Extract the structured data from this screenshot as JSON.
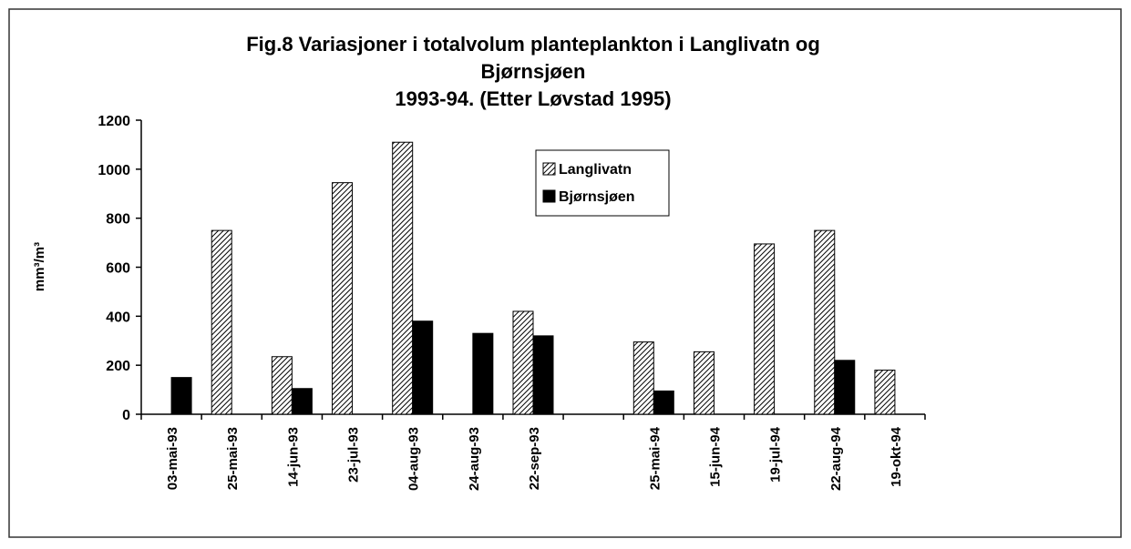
{
  "chart_data": {
    "type": "bar",
    "title": [
      "Fig.8  Variasjoner i totalvolum planteplankton i Langlivatn og",
      "Bjørnsjøen"
    ],
    "subtitle": "1993-94. (Etter Løvstad 1995)",
    "y_label": "mm³/m³",
    "categories": [
      "03-mai-93",
      "25-mai-93",
      "14-jun-93",
      "23-jul-93",
      "04-aug-93",
      "24-aug-93",
      "22-sep-93",
      null,
      "25-mai-94",
      "15-jun-94",
      "19-jul-94",
      "22-aug-94",
      "19-okt-94"
    ],
    "series": [
      {
        "name": "Langlivatn",
        "color": "#ffffff",
        "pattern": "hatch",
        "values": [
          null,
          750,
          235,
          945,
          1110,
          null,
          420,
          null,
          295,
          255,
          695,
          750,
          180
        ]
      },
      {
        "name": "Bjørnsjøen",
        "color": "#000000",
        "values": [
          150,
          null,
          105,
          null,
          380,
          330,
          320,
          null,
          95,
          null,
          null,
          220,
          null
        ]
      }
    ],
    "ylim": [
      0,
      1200
    ],
    "yticks": [
      0,
      200,
      400,
      600,
      800,
      1000,
      1200
    ],
    "grid": false,
    "legend": "top"
  }
}
